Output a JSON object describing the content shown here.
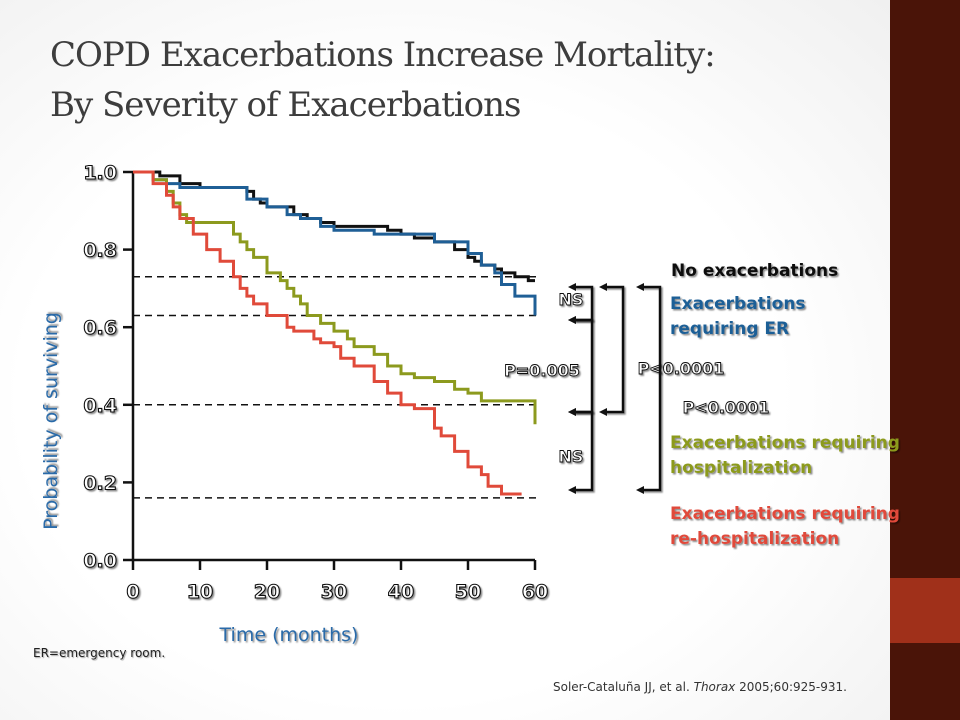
{
  "slide": {
    "title_line1": "COPD Exacerbations Increase Mortality:",
    "title_line2": "By Severity of Exacerbations",
    "footnote": "ER=emergency room.",
    "citation_pre": "Soler-Cataluña JJ, et al. ",
    "citation_journal": "Thorax",
    "citation_post": " 2005;60:925-931."
  },
  "colors": {
    "background": "#ffffff",
    "right_bar": "#4a1408",
    "right_accent": "#a0301a",
    "title": "#3d3d3d"
  },
  "chart_data": {
    "type": "line",
    "step": true,
    "xlabel": "Time (months)",
    "ylabel": "Probability of surviving",
    "xlim": [
      0,
      60
    ],
    "ylim": [
      0,
      1.0
    ],
    "x_ticks": [
      0,
      10,
      20,
      30,
      40,
      50,
      60
    ],
    "y_ticks": [
      0.0,
      0.2,
      0.4,
      0.6,
      0.8,
      1.0
    ],
    "y_tick_labels": [
      "0.0",
      "0.2",
      "0.4",
      "0.6",
      "0.8",
      "1.0"
    ],
    "series": [
      {
        "name": "No exacerbations",
        "color": "#111111",
        "x": [
          0,
          4,
          7,
          10,
          15,
          17,
          18,
          19,
          20,
          24,
          26,
          28,
          30,
          33,
          38,
          40,
          42,
          45,
          48,
          50,
          51,
          52,
          54,
          55,
          57,
          59,
          60
        ],
        "y": [
          1.0,
          0.99,
          0.97,
          0.96,
          0.96,
          0.95,
          0.93,
          0.92,
          0.91,
          0.89,
          0.88,
          0.87,
          0.86,
          0.86,
          0.85,
          0.84,
          0.83,
          0.82,
          0.8,
          0.78,
          0.77,
          0.76,
          0.75,
          0.74,
          0.73,
          0.72,
          0.72
        ]
      },
      {
        "name": "Exacerbations requiring ER",
        "color": "#1f5f96",
        "x": [
          0,
          3,
          5,
          7,
          15,
          17,
          20,
          23,
          25,
          28,
          30,
          36,
          45,
          50,
          52,
          54,
          55,
          57,
          60
        ],
        "y": [
          1.0,
          0.98,
          0.97,
          0.96,
          0.96,
          0.93,
          0.91,
          0.89,
          0.88,
          0.86,
          0.85,
          0.84,
          0.82,
          0.79,
          0.76,
          0.74,
          0.71,
          0.68,
          0.63
        ]
      },
      {
        "name": "Exacerbations requiring hospitalization",
        "color": "#8c9a1e",
        "x": [
          0,
          3,
          5,
          6,
          7,
          8,
          12,
          15,
          16,
          17,
          18,
          20,
          22,
          23,
          24,
          25,
          26,
          28,
          30,
          32,
          33,
          36,
          38,
          40,
          42,
          45,
          48,
          50,
          52,
          56,
          60
        ],
        "y": [
          1.0,
          0.98,
          0.95,
          0.92,
          0.89,
          0.87,
          0.87,
          0.84,
          0.82,
          0.8,
          0.78,
          0.74,
          0.72,
          0.7,
          0.68,
          0.66,
          0.63,
          0.61,
          0.59,
          0.57,
          0.55,
          0.53,
          0.5,
          0.48,
          0.47,
          0.46,
          0.44,
          0.43,
          0.41,
          0.41,
          0.35
        ]
      },
      {
        "name": "Exacerbations requiring re-hospitalization",
        "color": "#e04a3a",
        "x": [
          0,
          3,
          5,
          6,
          7,
          9,
          11,
          13,
          15,
          16,
          17,
          18,
          20,
          23,
          24,
          25,
          27,
          28,
          30,
          31,
          33,
          36,
          38,
          40,
          42,
          45,
          46,
          48,
          50,
          52,
          53,
          55,
          58
        ],
        "y": [
          1.0,
          0.97,
          0.94,
          0.91,
          0.88,
          0.84,
          0.8,
          0.77,
          0.73,
          0.7,
          0.68,
          0.66,
          0.63,
          0.6,
          0.59,
          0.59,
          0.57,
          0.56,
          0.55,
          0.52,
          0.5,
          0.46,
          0.43,
          0.4,
          0.39,
          0.34,
          0.32,
          0.28,
          0.24,
          0.22,
          0.19,
          0.17,
          0.17
        ]
      }
    ],
    "reference_lines": [
      0.73,
      0.63,
      0.4,
      0.16
    ],
    "legend": [
      {
        "label_lines": [
          "No exacerbations"
        ],
        "color": "#111111"
      },
      {
        "label_lines": [
          "Exacerbations",
          "requiring ER"
        ],
        "color": "#1f5f96"
      },
      {
        "label_lines": [
          "Exacerbations requiring",
          "hospitalization"
        ],
        "color": "#8c9a1e"
      },
      {
        "label_lines": [
          "Exacerbations requiring",
          "re-hospitalization"
        ],
        "color": "#e04a3a"
      }
    ],
    "comparisons": [
      {
        "label": "NS",
        "from": 0.73,
        "to": 0.63
      },
      {
        "label": "P=0.005",
        "from": 0.63,
        "to": 0.4
      },
      {
        "label": "NS",
        "from": 0.4,
        "to": 0.16
      },
      {
        "label": "P<0.0001",
        "from": 0.73,
        "to": 0.4
      },
      {
        "label": "P<0.0001",
        "from": 0.73,
        "to": 0.16
      }
    ]
  }
}
